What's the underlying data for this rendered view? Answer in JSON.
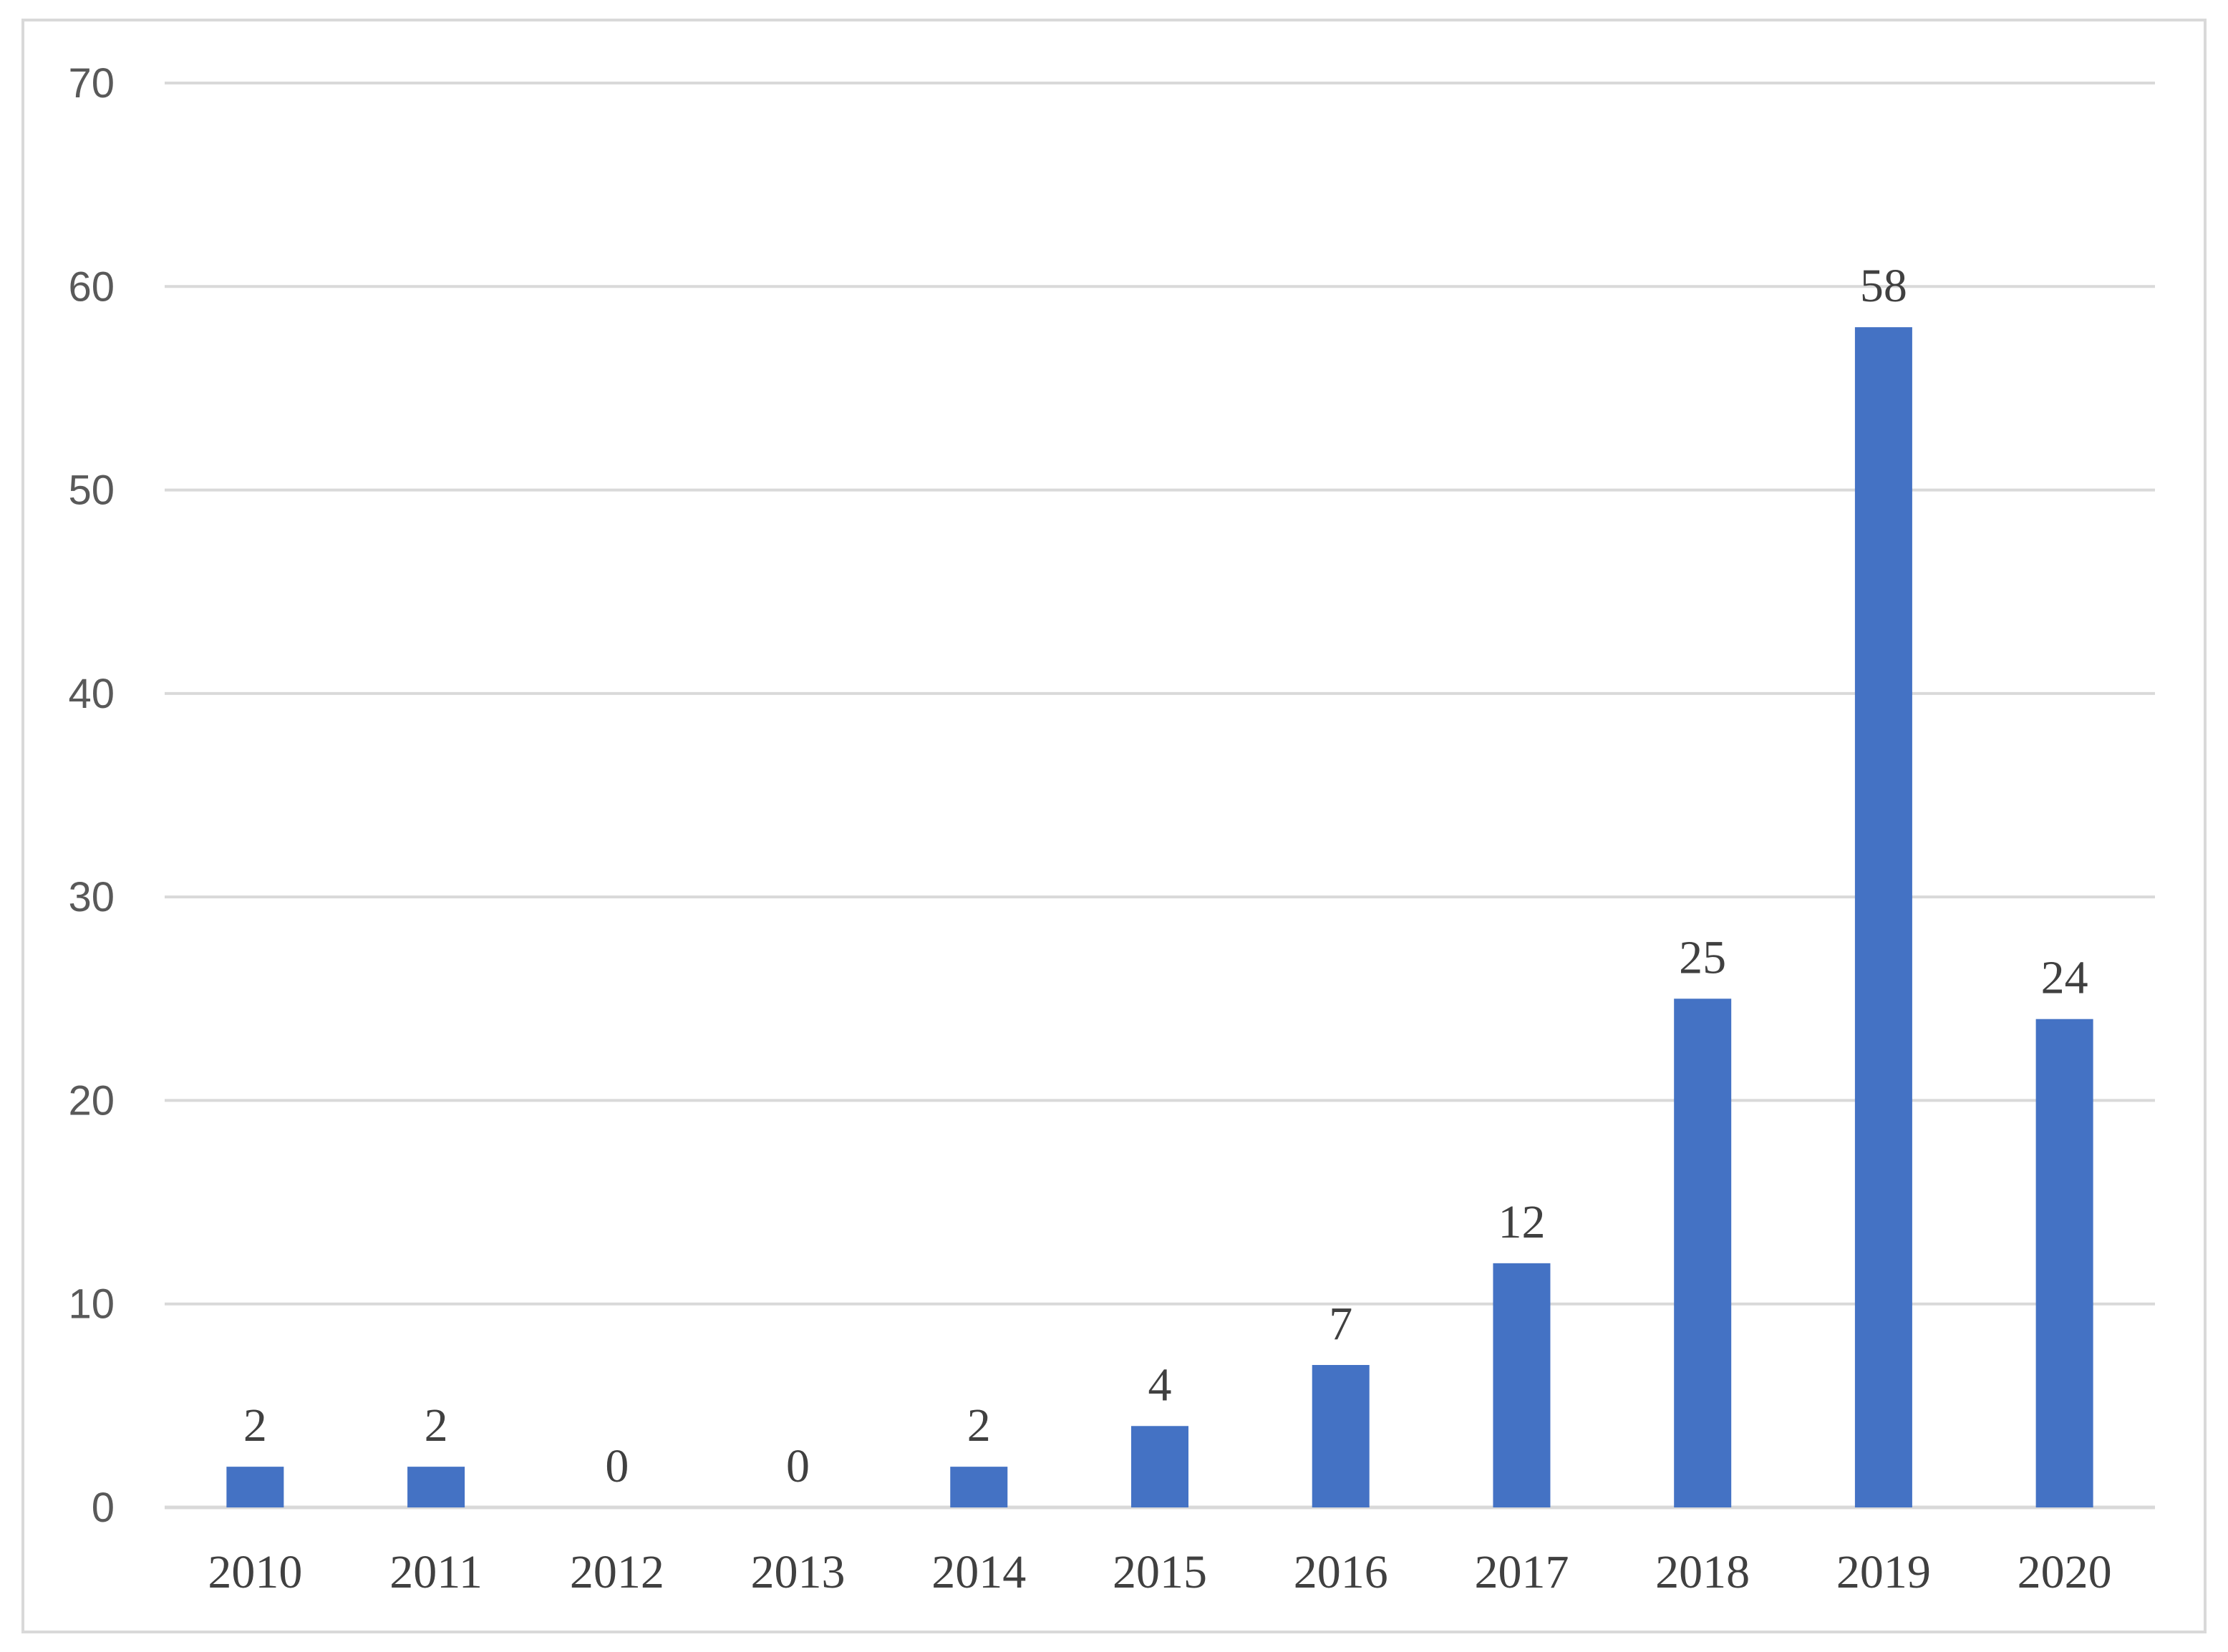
{
  "chart_data": {
    "type": "bar",
    "categories": [
      "2010",
      "2011",
      "2012",
      "2013",
      "2014",
      "2015",
      "2016",
      "2017",
      "2018",
      "2019",
      "2020"
    ],
    "series": [
      {
        "values": [
          2,
          2,
          0,
          0,
          2,
          4,
          7,
          12,
          25,
          58,
          24
        ],
        "color": "#4472c4"
      }
    ],
    "ylim": [
      0,
      70
    ],
    "yticks": [
      "0",
      "10",
      "20",
      "30",
      "40",
      "50",
      "60",
      "70"
    ],
    "data_labels": [
      "2",
      "2",
      "0",
      "0",
      "2",
      "4",
      "7",
      "12",
      "25",
      "58",
      "24"
    ],
    "title": "",
    "xlabel": "",
    "ylabel": "",
    "grid": true,
    "legend": "none",
    "colors": {
      "bar": "#4472c4",
      "gridline": "#d9d9d9",
      "frame": "#d9d9d9",
      "tick_text": "#595959",
      "label_text": "#404040"
    }
  }
}
